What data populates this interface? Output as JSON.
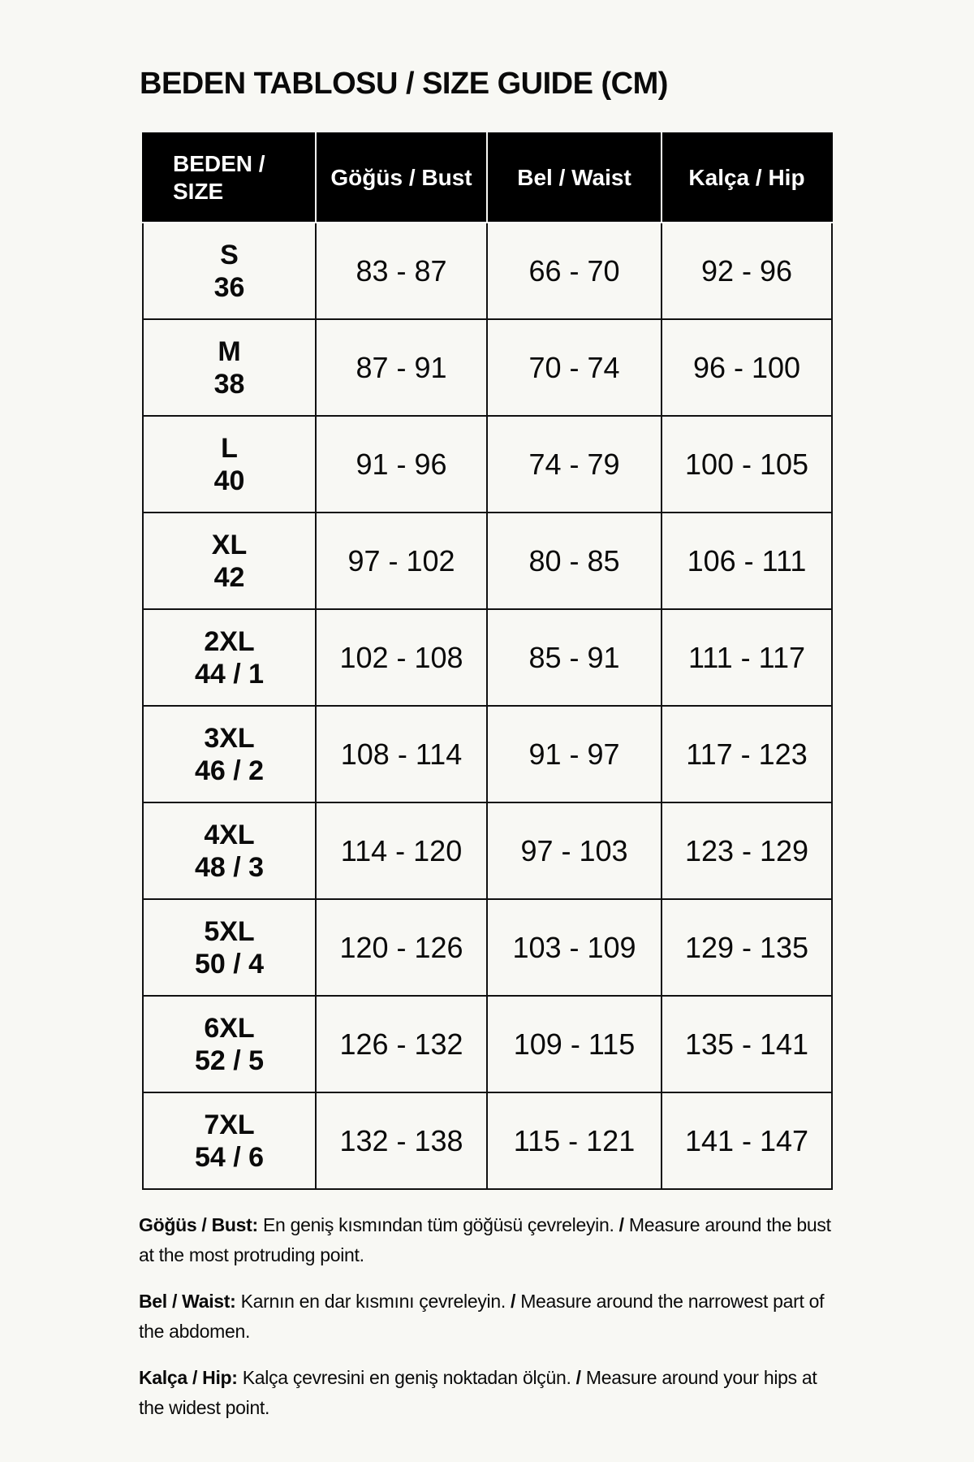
{
  "title": "BEDEN TABLOSU / SIZE GUIDE (CM)",
  "table": {
    "headers": [
      "BEDEN /",
      "SIZE",
      "Göğüs / Bust",
      "Bel / Waist",
      "Kalça / Hip"
    ],
    "rows": [
      {
        "size": "S",
        "num": "36",
        "bust": "83 - 87",
        "waist": "66 - 70",
        "hip": "92 - 96"
      },
      {
        "size": "M",
        "num": "38",
        "bust": "87 - 91",
        "waist": "70 - 74",
        "hip": "96 - 100"
      },
      {
        "size": "L",
        "num": "40",
        "bust": "91 - 96",
        "waist": "74 - 79",
        "hip": "100 - 105"
      },
      {
        "size": "XL",
        "num": "42",
        "bust": "97 - 102",
        "waist": "80 - 85",
        "hip": "106 - 111"
      },
      {
        "size": "2XL",
        "num": "44 / 1",
        "bust": "102 - 108",
        "waist": "85 - 91",
        "hip": "111 - 117"
      },
      {
        "size": "3XL",
        "num": "46 / 2",
        "bust": "108 - 114",
        "waist": "91 - 97",
        "hip": "117 - 123"
      },
      {
        "size": "4XL",
        "num": "48 / 3",
        "bust": "114 - 120",
        "waist": "97 - 103",
        "hip": "123 - 129"
      },
      {
        "size": "5XL",
        "num": "50 / 4",
        "bust": "120 - 126",
        "waist": "103 - 109",
        "hip": "129 - 135"
      },
      {
        "size": "6XL",
        "num": "52 / 5",
        "bust": "126 - 132",
        "waist": "109 - 115",
        "hip": "135 - 141"
      },
      {
        "size": "7XL",
        "num": "54 / 6",
        "bust": "132 - 138",
        "waist": "115 - 121",
        "hip": "141 - 147"
      }
    ]
  },
  "notes": [
    {
      "label": "Göğüs / Bust:",
      "tr": " En geniş kısmından tüm göğüsü çevreleyin. ",
      "sep": "/",
      "en": " Measure around the bust at the most protruding point."
    },
    {
      "label": "Bel / Waist:",
      "tr": " Karnın en dar kısmını çevreleyin. ",
      "sep": "/",
      "en": " Measure around the narrowest part of the abdomen."
    },
    {
      "label": "Kalça / Hip:",
      "tr": " Kalça çevresini en geniş noktadan ölçün. ",
      "sep": "/",
      "en": " Measure around your hips at the widest point."
    }
  ]
}
